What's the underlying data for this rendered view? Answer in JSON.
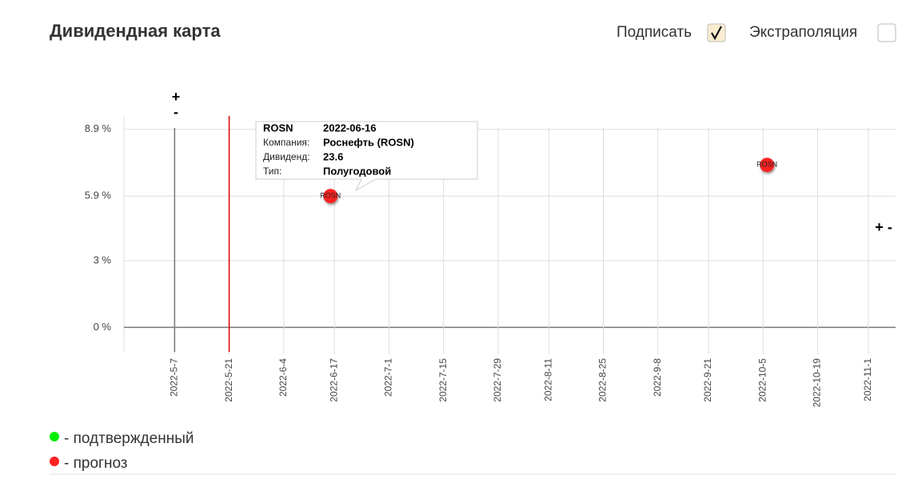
{
  "header": {
    "title": "Дивидендная карта",
    "options": [
      {
        "label": "Подписать",
        "checked": true
      },
      {
        "label": "Экстраполяция",
        "checked": false
      }
    ]
  },
  "controls": [
    "+",
    "-",
    "+ -"
  ],
  "chart_data": {
    "type": "scatter",
    "xlim": [
      "2022-4-24",
      "2022-11-8"
    ],
    "xticks": [
      "2022-5-7",
      "2022-5-21",
      "2022-6-4",
      "2022-6-17",
      "2022-7-1",
      "2022-7-15",
      "2022-7-29",
      "2022-8-11",
      "2022-8-25",
      "2022-9-8",
      "2022-9-21",
      "2022-10-5",
      "2022-10-19",
      "2022-11-1"
    ],
    "ylim": [
      -1.1,
      9.5
    ],
    "yticks": [
      {
        "value": 0,
        "label": "0 %"
      },
      {
        "value": 3,
        "label": "3 %"
      },
      {
        "value": 5.9,
        "label": "5.9 %"
      },
      {
        "value": 8.9,
        "label": "8.9 %"
      }
    ],
    "grid": true,
    "vlines": [
      {
        "x": "2022-5-7",
        "color": "#777777"
      },
      {
        "x": "2022-5-21",
        "color": "#dd0000"
      }
    ],
    "series": [
      {
        "name": "- подтвержденный",
        "color": "#00ee00",
        "x": [],
        "values": [],
        "labels": []
      },
      {
        "name": "- прогноз",
        "color": "#ff2222",
        "x": [
          "2022-06-16",
          "2022-10-06"
        ],
        "values": [
          5.9,
          7.3
        ],
        "labels": [
          "ROSN",
          "ROSN"
        ]
      }
    ],
    "tooltip": {
      "rows": [
        [
          "Компания:",
          "Роснефть (ROSN)"
        ],
        [
          "Дивиденд:",
          "23.6"
        ],
        [
          "Тип:",
          "Полугодовой"
        ]
      ]
    }
  }
}
